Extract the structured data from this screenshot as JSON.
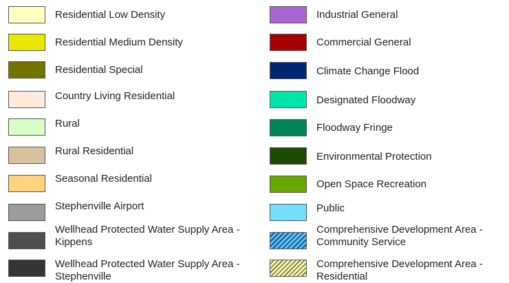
{
  "legend": {
    "left": [
      {
        "label": "Residential Low Density",
        "color": "#ffffbe"
      },
      {
        "label": "Residential Medium Density",
        "color": "#e9e600"
      },
      {
        "label": "Residential Special",
        "color": "#737300"
      },
      {
        "label": "Country Living Residential",
        "color": "#ffebdc"
      },
      {
        "label": "Rural",
        "color": "#d7ffc8"
      },
      {
        "label": "Rural Residential",
        "color": "#d7c29e"
      },
      {
        "label": "Seasonal Residential",
        "color": "#ffd380"
      },
      {
        "label": "Stephenville Airport",
        "color": "#9c9c9c"
      },
      {
        "label": "Wellhead Protected Water Supply Area - Kippens",
        "color": "#4e4e4e"
      },
      {
        "label": "Wellhead Protected Water Supply Area - Stephenville",
        "color": "#343434"
      }
    ],
    "right": [
      {
        "label": "Industrial General",
        "color": "#a964d2"
      },
      {
        "label": "Commercial General",
        "color": "#a80000"
      },
      {
        "label": "Climate Change Flood",
        "color": "#002673"
      },
      {
        "label": "Designated Floodway",
        "color": "#00e6a9"
      },
      {
        "label": "Floodway Fringe",
        "color": "#00845a"
      },
      {
        "label": "Environmental Protection",
        "color": "#1b4a00"
      },
      {
        "label": "Open Space Recreation",
        "color": "#6aa600"
      },
      {
        "label": "Public",
        "color": "#73dfff"
      },
      {
        "label": "Comprehensive Development Area - Community Service",
        "color": "#73dfff",
        "pattern": "hatch-blue"
      },
      {
        "label": "Comprehensive Development Area - Residential",
        "color": "#ffffbe",
        "pattern": "hatch-yellow"
      }
    ]
  }
}
